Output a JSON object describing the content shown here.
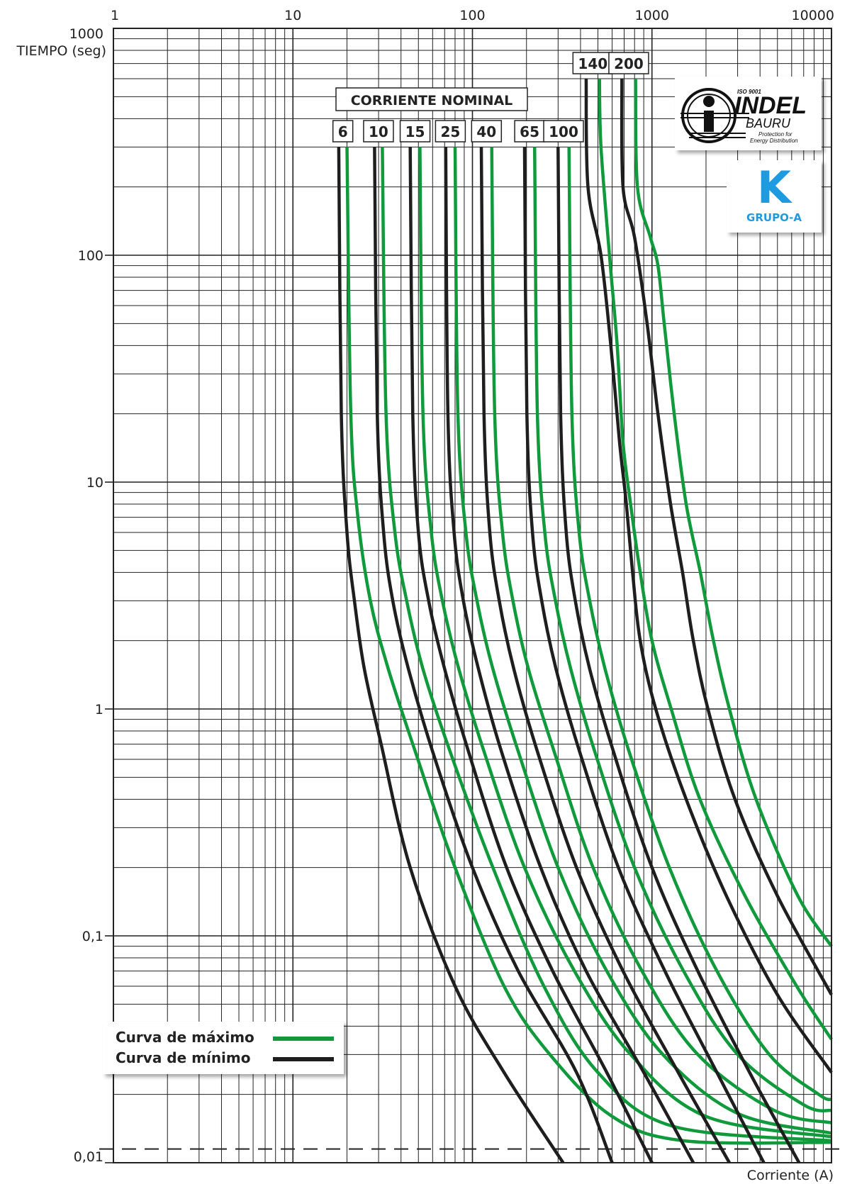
{
  "chart_data": {
    "type": "line",
    "x_scale": "log",
    "y_scale": "log",
    "xlim": [
      1,
      10000
    ],
    "ylim": [
      0.01,
      1000
    ],
    "x_ticks": [
      "1",
      "10",
      "100",
      "1000",
      "10000"
    ],
    "y_ticks": [
      "1000",
      "100",
      "10",
      "1",
      "0,1",
      "0,01"
    ],
    "ylabel": "TIEMPO (seg)",
    "xlabel": "Corriente (A)",
    "grid": true,
    "header_label": "CORRIENTE NOMINAL",
    "reference_time_dashed": 0.0115,
    "colors": {
      "max": "#109a3c",
      "min": "#1e1e1e"
    },
    "series": [
      {
        "rating": "6",
        "kind": "min",
        "points": [
          [
            18,
            300
          ],
          [
            18.6,
            20
          ],
          [
            20,
            6
          ],
          [
            22,
            3
          ],
          [
            25,
            1.5
          ],
          [
            31,
            0.7
          ],
          [
            45,
            0.2
          ],
          [
            80,
            0.06
          ],
          [
            150,
            0.025
          ],
          [
            320,
            0.01
          ]
        ]
      },
      {
        "rating": "6",
        "kind": "max",
        "points": [
          [
            20,
            300
          ],
          [
            21,
            20
          ],
          [
            23,
            7
          ],
          [
            27,
            3
          ],
          [
            34,
            1.5
          ],
          [
            48,
            0.65
          ],
          [
            80,
            0.2
          ],
          [
            150,
            0.06
          ],
          [
            270,
            0.03
          ],
          [
            600,
            0.016
          ],
          [
            1500,
            0.0125
          ],
          [
            10000,
            0.0123
          ]
        ]
      },
      {
        "rating": "10",
        "kind": "min",
        "points": [
          [
            28.5,
            300
          ],
          [
            29.5,
            20
          ],
          [
            32,
            6
          ],
          [
            36,
            3
          ],
          [
            44,
            1.5
          ],
          [
            60,
            0.65
          ],
          [
            100,
            0.2
          ],
          [
            180,
            0.07
          ],
          [
            380,
            0.025
          ],
          [
            600,
            0.01
          ]
        ]
      },
      {
        "rating": "10",
        "kind": "max",
        "points": [
          [
            31.5,
            300
          ],
          [
            33,
            20
          ],
          [
            37,
            6
          ],
          [
            43,
            3
          ],
          [
            53,
            1.5
          ],
          [
            75,
            0.65
          ],
          [
            130,
            0.2
          ],
          [
            250,
            0.06
          ],
          [
            500,
            0.025
          ],
          [
            1300,
            0.0145
          ],
          [
            10000,
            0.0125
          ]
        ]
      },
      {
        "rating": "15",
        "kind": "min",
        "points": [
          [
            45,
            300
          ],
          [
            46.5,
            20
          ],
          [
            50,
            6
          ],
          [
            57,
            3
          ],
          [
            70,
            1.5
          ],
          [
            95,
            0.65
          ],
          [
            155,
            0.2
          ],
          [
            280,
            0.07
          ],
          [
            560,
            0.025
          ],
          [
            1000,
            0.01
          ]
        ]
      },
      {
        "rating": "15",
        "kind": "max",
        "points": [
          [
            51,
            300
          ],
          [
            53,
            20
          ],
          [
            59,
            6
          ],
          [
            68,
            3
          ],
          [
            84,
            1.5
          ],
          [
            116,
            0.65
          ],
          [
            195,
            0.2
          ],
          [
            370,
            0.07
          ],
          [
            760,
            0.03
          ],
          [
            2000,
            0.016
          ],
          [
            10000,
            0.013
          ]
        ]
      },
      {
        "rating": "25",
        "kind": "min",
        "points": [
          [
            71,
            300
          ],
          [
            73,
            20
          ],
          [
            79,
            6
          ],
          [
            89,
            3
          ],
          [
            108,
            1.5
          ],
          [
            145,
            0.65
          ],
          [
            240,
            0.2
          ],
          [
            430,
            0.07
          ],
          [
            900,
            0.025
          ],
          [
            1700,
            0.01
          ]
        ]
      },
      {
        "rating": "25",
        "kind": "max",
        "points": [
          [
            80,
            300
          ],
          [
            83,
            20
          ],
          [
            92,
            6
          ],
          [
            106,
            3
          ],
          [
            130,
            1.5
          ],
          [
            180,
            0.65
          ],
          [
            300,
            0.2
          ],
          [
            560,
            0.07
          ],
          [
            1150,
            0.03
          ],
          [
            3000,
            0.0165
          ],
          [
            10000,
            0.0135
          ]
        ]
      },
      {
        "rating": "40",
        "kind": "min",
        "points": [
          [
            112,
            300
          ],
          [
            116,
            20
          ],
          [
            125,
            6
          ],
          [
            141,
            3
          ],
          [
            170,
            1.5
          ],
          [
            230,
            0.65
          ],
          [
            380,
            0.2
          ],
          [
            690,
            0.07
          ],
          [
            1400,
            0.025
          ],
          [
            2700,
            0.01
          ]
        ]
      },
      {
        "rating": "40",
        "kind": "max",
        "points": [
          [
            128,
            300
          ],
          [
            133,
            20
          ],
          [
            147,
            6
          ],
          [
            168,
            3
          ],
          [
            205,
            1.5
          ],
          [
            285,
            0.65
          ],
          [
            470,
            0.2
          ],
          [
            880,
            0.07
          ],
          [
            1800,
            0.03
          ],
          [
            4800,
            0.017
          ],
          [
            10000,
            0.015
          ]
        ]
      },
      {
        "rating": "65",
        "kind": "min",
        "points": [
          [
            195,
            300
          ],
          [
            201,
            20
          ],
          [
            216,
            6
          ],
          [
            243,
            3
          ],
          [
            292,
            1.5
          ],
          [
            395,
            0.65
          ],
          [
            650,
            0.2
          ],
          [
            1180,
            0.07
          ],
          [
            2300,
            0.025
          ],
          [
            4200,
            0.01
          ]
        ]
      },
      {
        "rating": "65",
        "kind": "max",
        "points": [
          [
            222,
            300
          ],
          [
            230,
            20
          ],
          [
            253,
            6
          ],
          [
            290,
            3
          ],
          [
            353,
            1.5
          ],
          [
            480,
            0.65
          ],
          [
            800,
            0.2
          ],
          [
            1500,
            0.07
          ],
          [
            3000,
            0.03
          ],
          [
            7000,
            0.018
          ],
          [
            10000,
            0.017
          ]
        ]
      },
      {
        "rating": "100",
        "kind": "min",
        "points": [
          [
            300,
            300
          ],
          [
            310,
            20
          ],
          [
            333,
            6
          ],
          [
            374,
            3
          ],
          [
            450,
            1.5
          ],
          [
            610,
            0.65
          ],
          [
            1000,
            0.2
          ],
          [
            1800,
            0.07
          ],
          [
            3500,
            0.025
          ],
          [
            6600,
            0.01
          ]
        ]
      },
      {
        "rating": "100",
        "kind": "max",
        "points": [
          [
            345,
            300
          ],
          [
            358,
            20
          ],
          [
            393,
            6
          ],
          [
            450,
            3
          ],
          [
            548,
            1.5
          ],
          [
            745,
            0.65
          ],
          [
            1250,
            0.2
          ],
          [
            2300,
            0.07
          ],
          [
            4500,
            0.03
          ],
          [
            8500,
            0.02
          ],
          [
            10000,
            0.019
          ]
        ]
      },
      {
        "rating": "140",
        "kind": "min",
        "points": [
          [
            430,
            600
          ],
          [
            440,
            200
          ],
          [
            520,
            100
          ],
          [
            590,
            40
          ],
          [
            660,
            15
          ],
          [
            720,
            8
          ],
          [
            780,
            4
          ],
          [
            860,
            2
          ],
          [
            1050,
            1
          ],
          [
            1550,
            0.4
          ],
          [
            2600,
            0.15
          ],
          [
            5000,
            0.055
          ],
          [
            10000,
            0.025
          ]
        ]
      },
      {
        "rating": "140",
        "kind": "max",
        "points": [
          [
            510,
            600
          ],
          [
            520,
            300
          ],
          [
            580,
            100
          ],
          [
            640,
            40
          ],
          [
            690,
            15
          ],
          [
            760,
            8
          ],
          [
            860,
            4
          ],
          [
            1000,
            2
          ],
          [
            1280,
            1
          ],
          [
            1850,
            0.4
          ],
          [
            3300,
            0.15
          ],
          [
            6400,
            0.06
          ],
          [
            10000,
            0.035
          ]
        ]
      },
      {
        "rating": "200",
        "kind": "min",
        "points": [
          [
            680,
            600
          ],
          [
            690,
            200
          ],
          [
            800,
            120
          ],
          [
            940,
            50
          ],
          [
            1080,
            20
          ],
          [
            1270,
            8
          ],
          [
            1480,
            4
          ],
          [
            1700,
            2
          ],
          [
            2050,
            1
          ],
          [
            2900,
            0.4
          ],
          [
            5000,
            0.15
          ],
          [
            10000,
            0.055
          ]
        ]
      },
      {
        "rating": "200",
        "kind": "max",
        "points": [
          [
            810,
            600
          ],
          [
            830,
            200
          ],
          [
            980,
            120
          ],
          [
            1080,
            90
          ],
          [
            1170,
            50
          ],
          [
            1330,
            20
          ],
          [
            1550,
            8
          ],
          [
            1860,
            4
          ],
          [
            2200,
            2
          ],
          [
            2700,
            1
          ],
          [
            3800,
            0.4
          ],
          [
            6500,
            0.15
          ],
          [
            10000,
            0.09
          ]
        ]
      }
    ],
    "ratings_low": [
      "6",
      "10",
      "15",
      "25",
      "40",
      "65",
      "100"
    ],
    "ratings_high": [
      "140",
      "200"
    ],
    "legend": [
      {
        "label": "Curva de máximo",
        "color": "#109a3c"
      },
      {
        "label": "Curva de mínimo",
        "color": "#1e1e1e"
      }
    ],
    "legend_position": "bottom-left"
  },
  "logo": {
    "iso": "ISO 9001",
    "brand": "INDEL",
    "city": "BAURU",
    "tagline1": "Protection for",
    "tagline2": "Energy Distribution",
    "letter": "K",
    "group": "GRUPO-A"
  }
}
